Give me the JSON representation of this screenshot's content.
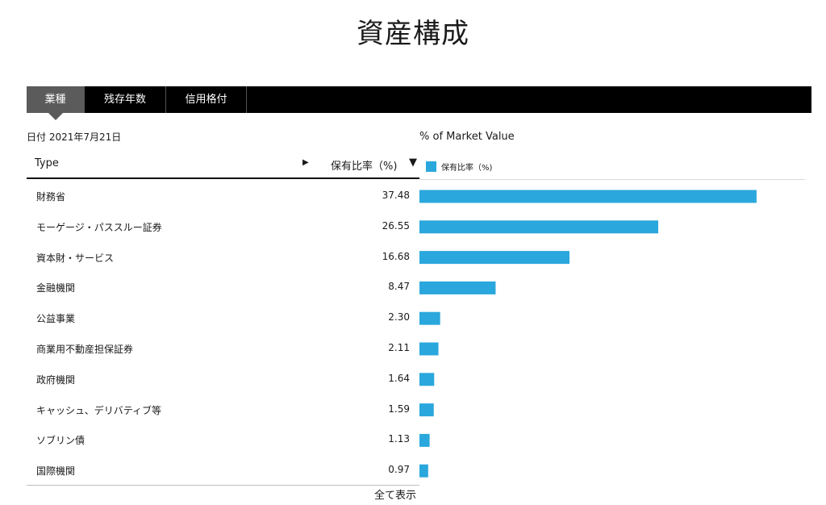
{
  "title": "資産構成",
  "tabs": [
    {
      "label": "業種",
      "active": true
    },
    {
      "label": "残存年数",
      "active": false
    },
    {
      "label": "信用格付",
      "active": false
    }
  ],
  "date_text": "日付 2021年7月21日",
  "table": {
    "col_type": "Type",
    "col_pct": "保有比率（%)",
    "sort_right_icon": "▶",
    "sort_down_icon": "▼",
    "rows": [
      {
        "name": "財務省",
        "value": "37.48"
      },
      {
        "name": "モーゲージ・パススルー証券",
        "value": "26.55"
      },
      {
        "name": "資本財・サービス",
        "value": "16.68"
      },
      {
        "name": "金融機関",
        "value": "8.47"
      },
      {
        "name": "公益事業",
        "value": "2.30"
      },
      {
        "name": "商業用不動産担保証券",
        "value": "2.11"
      },
      {
        "name": "政府機関",
        "value": "1.64"
      },
      {
        "name": "キャッシュ、デリバティブ等",
        "value": "1.59"
      },
      {
        "name": "ソブリン債",
        "value": "1.13"
      },
      {
        "name": "国際機関",
        "value": "0.97"
      }
    ]
  },
  "show_all": "全て表示",
  "chart_data": {
    "type": "bar",
    "orientation": "horizontal",
    "title": "% of Market Value",
    "categories": [
      "財務省",
      "モーゲージ・パススルー証券",
      "資本財・サービス",
      "金融機関",
      "公益事業",
      "商業用不動産担保証券",
      "政府機関",
      "キャッシュ、デリバティブ等",
      "ソブリン債",
      "国際機関"
    ],
    "series": [
      {
        "name": "保有比率（%)",
        "values": [
          37.48,
          26.55,
          16.68,
          8.47,
          2.3,
          2.11,
          1.64,
          1.59,
          1.13,
          0.97
        ],
        "color": "#2aa7dc"
      }
    ],
    "xlim": [
      0,
      40
    ],
    "legend": "top-left",
    "grid": false
  }
}
